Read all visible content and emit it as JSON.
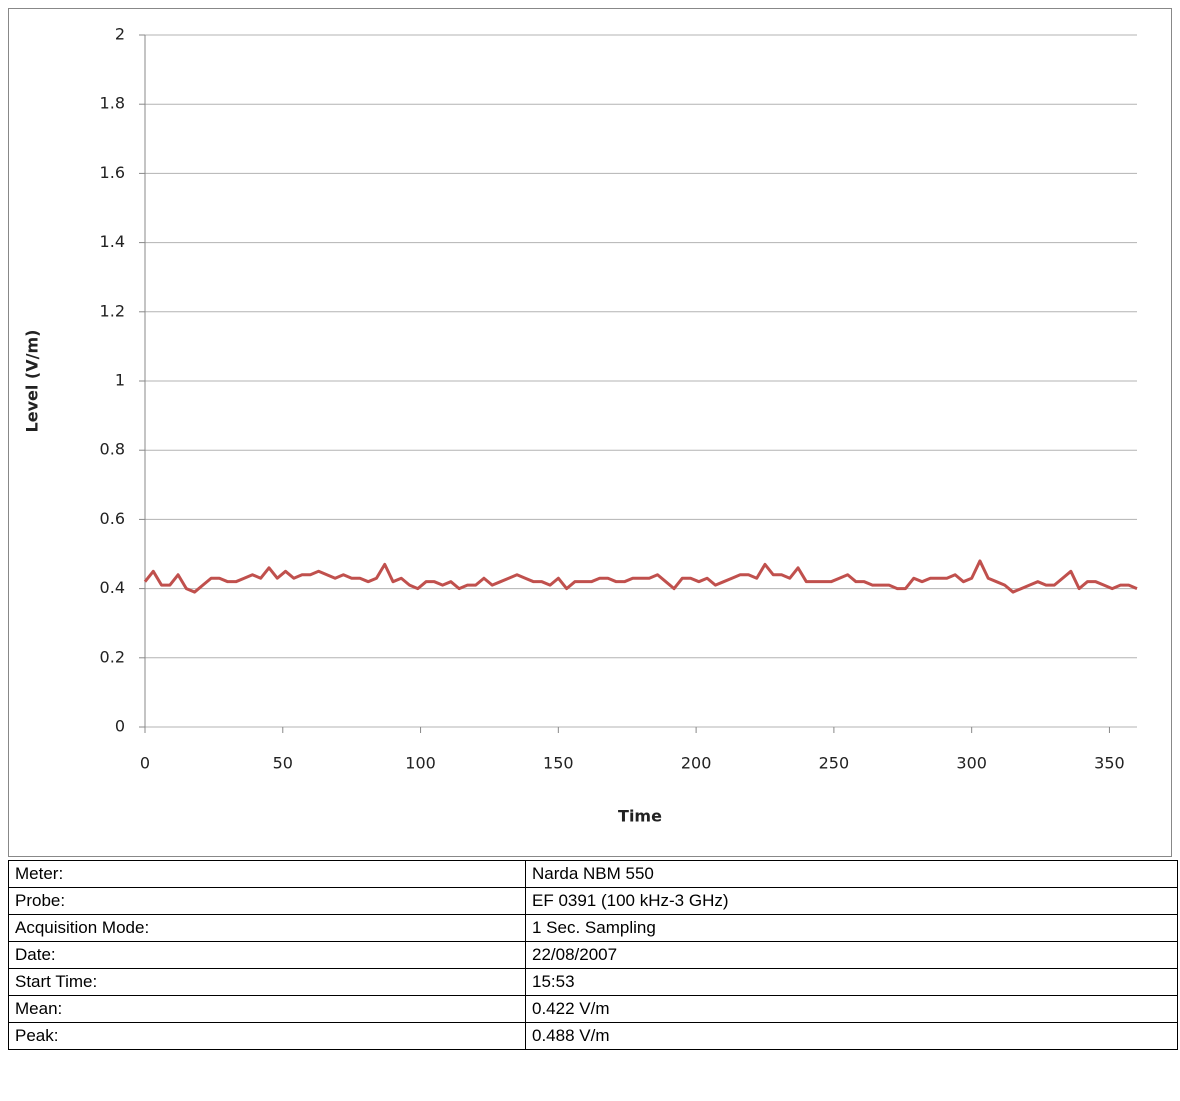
{
  "chart_data": {
    "type": "line",
    "ylabel": "Level (V/m)",
    "xlabel": "Time",
    "x": [
      0,
      3,
      6,
      9,
      12,
      15,
      18,
      21,
      24,
      27,
      30,
      33,
      36,
      39,
      42,
      45,
      48,
      51,
      54,
      57,
      60,
      63,
      66,
      69,
      72,
      75,
      78,
      81,
      84,
      87,
      90,
      93,
      96,
      99,
      102,
      105,
      108,
      111,
      114,
      117,
      120,
      123,
      126,
      129,
      132,
      135,
      138,
      141,
      144,
      147,
      150,
      153,
      156,
      159,
      162,
      165,
      168,
      171,
      174,
      177,
      180,
      183,
      186,
      189,
      192,
      195,
      198,
      201,
      204,
      207,
      210,
      213,
      216,
      219,
      222,
      225,
      228,
      231,
      234,
      237,
      240,
      243,
      246,
      249,
      252,
      255,
      258,
      261,
      264,
      267,
      270,
      273,
      276,
      279,
      282,
      285,
      288,
      291,
      294,
      297,
      300,
      303,
      306,
      309,
      312,
      315,
      318,
      321,
      324,
      327,
      330,
      333,
      336,
      339,
      342,
      345,
      348,
      351,
      354,
      357,
      360
    ],
    "series": [
      {
        "color": "#c0504d",
        "values": [
          0.42,
          0.45,
          0.41,
          0.41,
          0.44,
          0.4,
          0.39,
          0.41,
          0.43,
          0.43,
          0.42,
          0.42,
          0.43,
          0.44,
          0.43,
          0.46,
          0.43,
          0.45,
          0.43,
          0.44,
          0.44,
          0.45,
          0.44,
          0.43,
          0.44,
          0.43,
          0.43,
          0.42,
          0.43,
          0.47,
          0.42,
          0.43,
          0.41,
          0.4,
          0.42,
          0.42,
          0.41,
          0.42,
          0.4,
          0.41,
          0.41,
          0.43,
          0.41,
          0.42,
          0.43,
          0.44,
          0.43,
          0.42,
          0.42,
          0.41,
          0.43,
          0.4,
          0.42,
          0.42,
          0.42,
          0.43,
          0.43,
          0.42,
          0.42,
          0.43,
          0.43,
          0.43,
          0.44,
          0.42,
          0.4,
          0.43,
          0.43,
          0.42,
          0.43,
          0.41,
          0.42,
          0.43,
          0.44,
          0.44,
          0.43,
          0.47,
          0.44,
          0.44,
          0.43,
          0.46,
          0.42,
          0.42,
          0.42,
          0.42,
          0.43,
          0.44,
          0.42,
          0.42,
          0.41,
          0.41,
          0.41,
          0.4,
          0.4,
          0.43,
          0.42,
          0.43,
          0.43,
          0.43,
          0.44,
          0.42,
          0.43,
          0.48,
          0.43,
          0.42,
          0.41,
          0.39,
          0.4,
          0.41,
          0.42,
          0.41,
          0.41,
          0.43,
          0.45,
          0.4,
          0.42,
          0.42,
          0.41,
          0.4,
          0.41,
          0.41,
          0.4
        ]
      }
    ],
    "xlim": [
      0,
      360
    ],
    "xticks": [
      0,
      50,
      100,
      150,
      200,
      250,
      300,
      350
    ],
    "ylim": [
      0,
      2
    ],
    "yticks": [
      0,
      0.2,
      0.4,
      0.6,
      0.8,
      1,
      1.2,
      1.4,
      1.6,
      1.8,
      2
    ],
    "grid": true
  },
  "table": {
    "rows": [
      [
        "Meter:",
        "Narda NBM 550"
      ],
      [
        "Probe:",
        "EF 0391 (100 kHz-3 GHz)"
      ],
      [
        "Acquisition Mode:",
        "1 Sec. Sampling"
      ],
      [
        "Date:",
        "22/08/2007"
      ],
      [
        "Start Time:",
        "15:53"
      ],
      [
        "Mean:",
        "0.422 V/m"
      ],
      [
        "Peak:",
        "0.488 V/m"
      ]
    ]
  }
}
